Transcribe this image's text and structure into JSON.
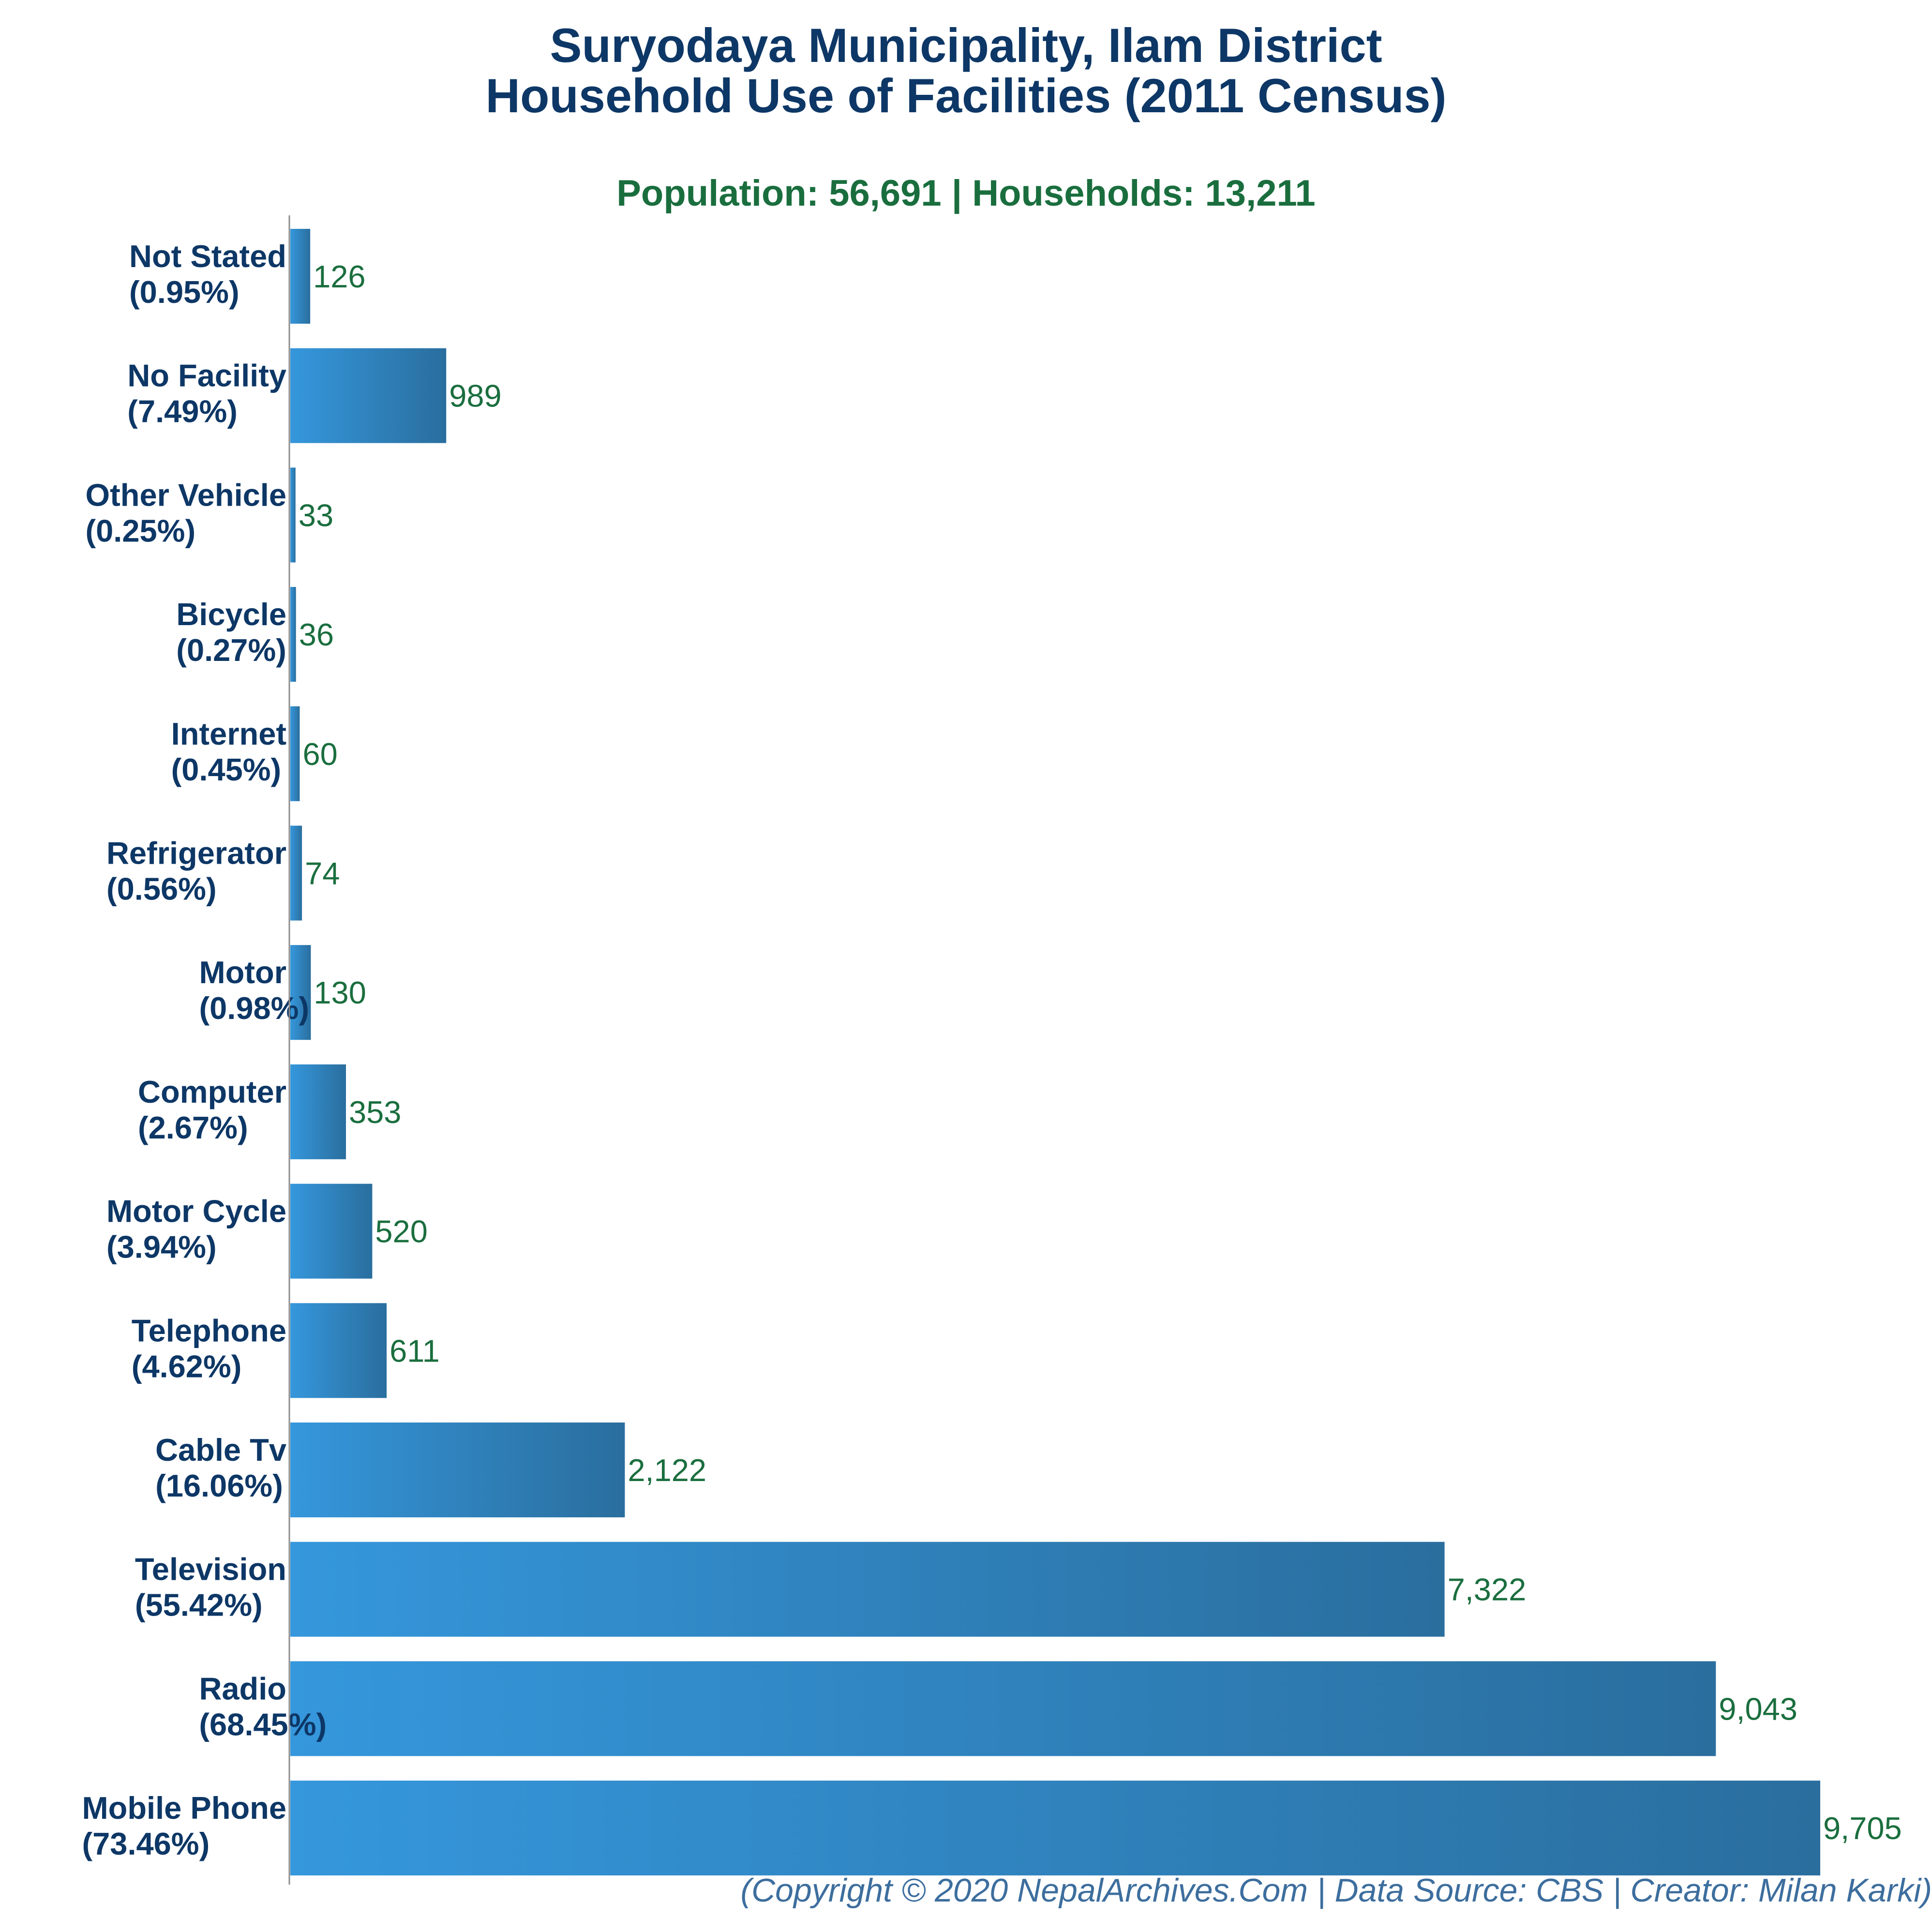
{
  "chart_data": {
    "type": "bar",
    "orientation": "horizontal",
    "title_lines": [
      "Suryodaya Municipality, Ilam District",
      "Household Use of Facilities (2011 Census)"
    ],
    "subtitle": "Population: 56,691 | Households: 13,211",
    "xlabel": "",
    "ylabel": "",
    "xlim": [
      0,
      9705
    ],
    "grid": false,
    "categories": [
      "Not Stated",
      "No Facility",
      "Other Vehicle",
      "Bicycle",
      "Internet",
      "Refrigerator",
      "Motor",
      "Computer",
      "Motor Cycle",
      "Telephone",
      "Cable Tv",
      "Television",
      "Radio",
      "Mobile Phone"
    ],
    "percent_labels": [
      "(0.95%)",
      "(7.49%)",
      "(0.25%)",
      "(0.27%)",
      "(0.45%)",
      "(0.56%)",
      "(0.98%)",
      "(2.67%)",
      "(3.94%)",
      "(4.62%)",
      "(16.06%)",
      "(55.42%)",
      "(68.45%)",
      "(73.46%)"
    ],
    "values": [
      126,
      989,
      33,
      36,
      60,
      74,
      130,
      353,
      520,
      611,
      2122,
      7322,
      9043,
      9705
    ],
    "value_labels": [
      "126",
      "989",
      "33",
      "36",
      "60",
      "74",
      "130",
      "353",
      "520",
      "611",
      "2,122",
      "7,322",
      "9,043",
      "9,705"
    ],
    "colors": {
      "bar_start": "#3597dc",
      "bar_end": "#2a6e9e",
      "title": "#0d3766",
      "subtitle": "#1a6e3e",
      "value_label": "#1a6e3e",
      "axis": "#8c8c8c",
      "footer": "#3d6e9e"
    }
  },
  "footer": "(Copyright © 2020 NepalArchives.Com | Data Source: CBS | Creator: Milan Karki)"
}
